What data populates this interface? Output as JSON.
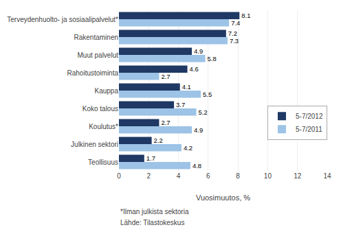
{
  "chart_data": {
    "type": "bar",
    "orientation": "horizontal",
    "categories": [
      "Terveydenhuolto- ja sosiaalipalvelut*",
      "Rakentaminen",
      "Muut palvelut",
      "Rahoitustoiminta",
      "Kauppa",
      "Koko talous",
      "Koulutus*",
      "Julkinen sektori",
      "Teollisuus"
    ],
    "series": [
      {
        "name": "5-7/2012",
        "color": "#1F3864",
        "values": [
          8.1,
          7.2,
          4.9,
          4.6,
          4.1,
          3.7,
          2.7,
          2.2,
          1.7
        ]
      },
      {
        "name": "5-7/2011",
        "color": "#9DC3E6",
        "values": [
          7.4,
          7.3,
          5.8,
          2.7,
          5.5,
          5.2,
          4.9,
          4.2,
          4.8
        ]
      }
    ],
    "xlabel": "Vuosimuutos, %",
    "xlim": [
      0,
      14
    ],
    "xticks": [
      0,
      2,
      4,
      6,
      8,
      10,
      12,
      14
    ],
    "grid": true,
    "legend": "right",
    "data_labels": true,
    "annotations": [
      "*Ilman julkista sektoria",
      "Lähde: Tilastokeskus"
    ]
  }
}
